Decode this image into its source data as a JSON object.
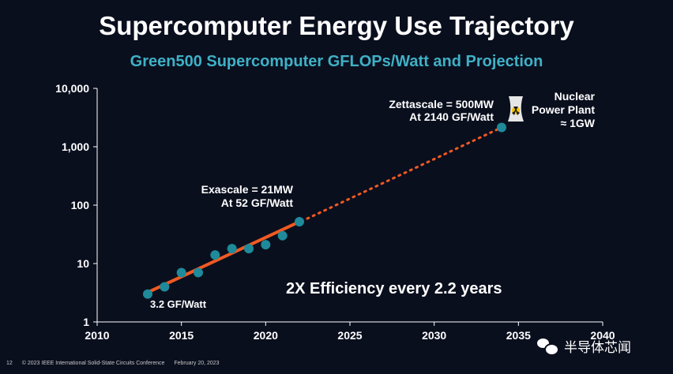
{
  "header": {
    "title": "Supercomputer Energy Use Trajectory",
    "subtitle": "Green500 Supercomputer GFLOPs/Watt and Projection"
  },
  "chart_data": {
    "type": "scatter",
    "xlim": [
      2010,
      2040
    ],
    "ylim": [
      1,
      10000
    ],
    "yscale": "log",
    "x_ticks": [
      "2010",
      "2015",
      "2020",
      "2025",
      "2030",
      "2035",
      "2040"
    ],
    "y_ticks": [
      "1",
      "10",
      "100",
      "1,000",
      "10,000"
    ],
    "grid": false,
    "points": [
      {
        "x": 2013,
        "y": 3.0
      },
      {
        "x": 2014,
        "y": 4.0
      },
      {
        "x": 2015,
        "y": 7.0
      },
      {
        "x": 2016,
        "y": 7.0
      },
      {
        "x": 2017,
        "y": 14
      },
      {
        "x": 2018,
        "y": 18
      },
      {
        "x": 2019,
        "y": 18
      },
      {
        "x": 2020,
        "y": 21
      },
      {
        "x": 2021,
        "y": 30
      },
      {
        "x": 2022,
        "y": 52
      },
      {
        "x": 2034,
        "y": 2140
      }
    ],
    "trend_line": {
      "x1": 2013,
      "y1": 3.2,
      "x2": 2022,
      "y2": 52
    },
    "projection_line": {
      "x1": 2022,
      "y1": 52,
      "x2": 2034,
      "y2": 2140
    },
    "annotations": {
      "exascale_line1": "Exascale = 21MW",
      "exascale_line2": "At 52 GF/Watt",
      "zettascale_line1": "Zettascale = 500MW",
      "zettascale_line2": "At 2140 GF/Watt",
      "start_label": "3.2 GF/Watt",
      "nuclear_line1": "Nuclear",
      "nuclear_line2": "Power Plant",
      "nuclear_line3": "≈ 1GW",
      "efficiency": "2X Efficiency every 2.2 years"
    },
    "colors": {
      "point": "#1e8a9a",
      "trend": "#f05a22",
      "projection": "#f05a22",
      "axis": "#ffffff",
      "text": "#ffffff"
    },
    "icon": "nuclear-cooling-tower-icon"
  },
  "footer": {
    "page_number": "12",
    "copyright": "© 2023 IEEE International Solid-State Circuits Conference",
    "date": "February 20, 2023"
  },
  "watermark": {
    "text": "半导体芯闻",
    "icon": "wechat-icon"
  }
}
